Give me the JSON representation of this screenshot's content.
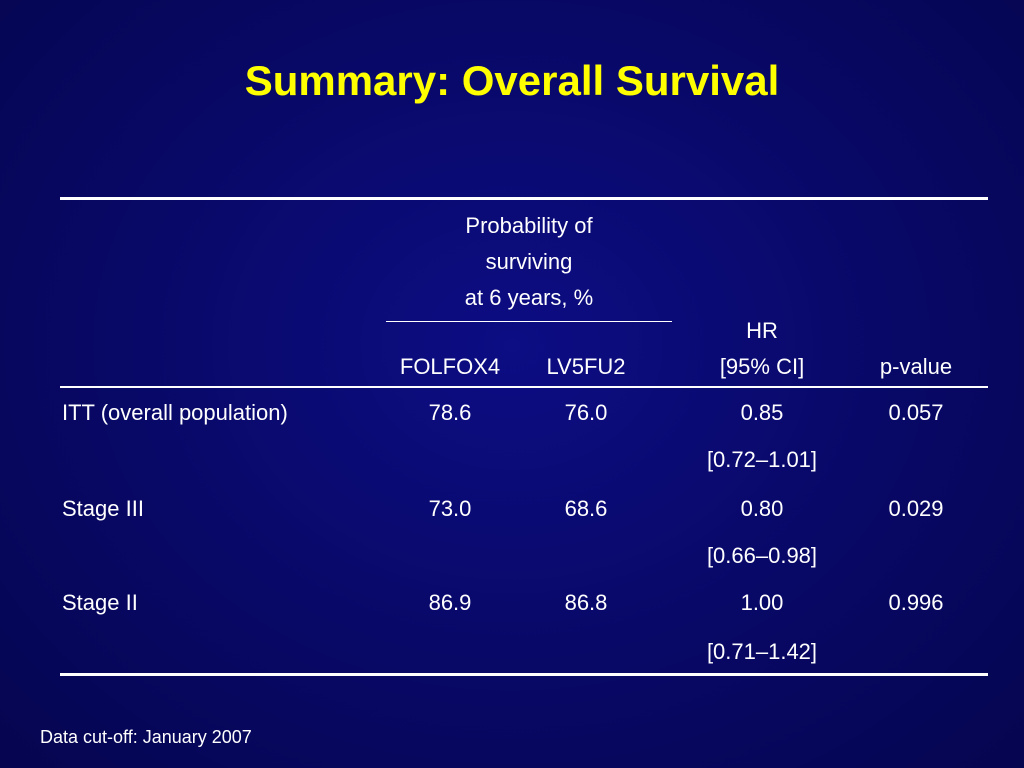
{
  "title": "Summary: Overall Survival",
  "table": {
    "group_header_lines": [
      "Probability of",
      "surviving",
      "at 6 years, %"
    ],
    "columns": {
      "folfox4": "FOLFOX4",
      "lv5fu2": "LV5FU2",
      "hr_line1": "HR",
      "hr_line2": "[95% CI]",
      "pvalue": "p-value"
    },
    "rows": [
      {
        "label": "ITT (overall population)",
        "folfox4": "78.6",
        "lv5fu2": "76.0",
        "hr": "0.85",
        "ci": "[0.72–1.01]",
        "p": "0.057"
      },
      {
        "label": "Stage III",
        "folfox4": "73.0",
        "lv5fu2": "68.6",
        "hr": "0.80",
        "ci": "[0.66–0.98]",
        "p": "0.029"
      },
      {
        "label": "Stage II",
        "folfox4": "86.9",
        "lv5fu2": "86.8",
        "hr": "1.00",
        "ci": "[0.71–1.42]",
        "p": "0.996"
      }
    ]
  },
  "footnote": "Data cut-off: January 2007",
  "colors": {
    "background": "#080866",
    "title": "#ffff00",
    "text": "#ffffff"
  }
}
